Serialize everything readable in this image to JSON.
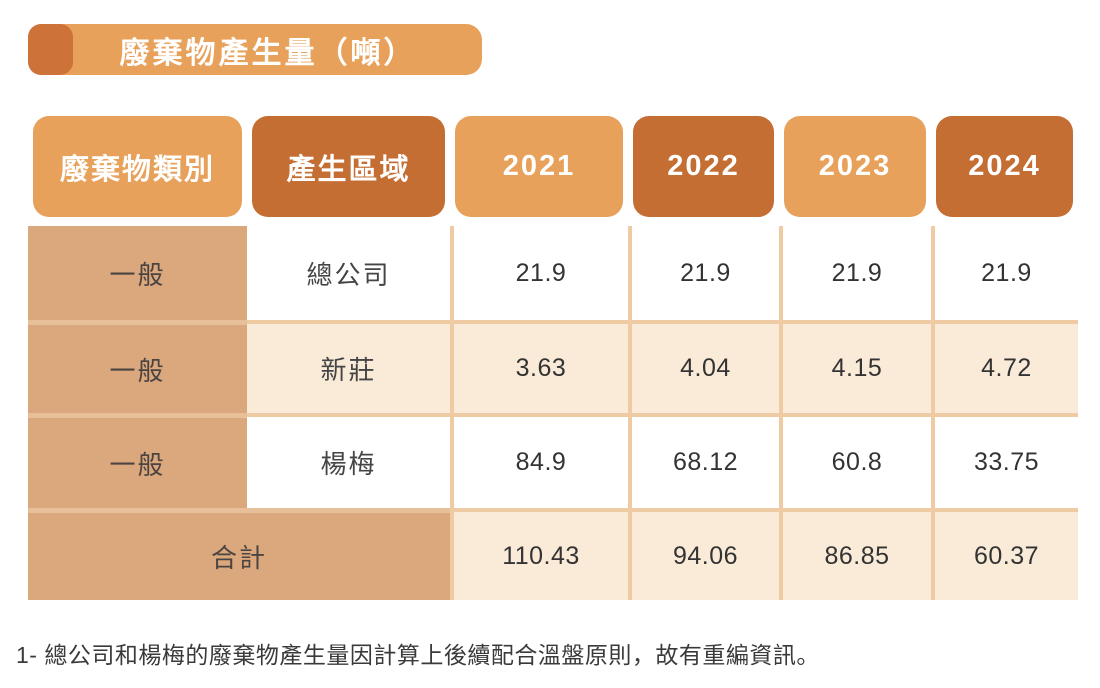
{
  "title": {
    "text": "廢棄物產生量（噸）"
  },
  "table": {
    "headers": [
      {
        "label": "廢棄物類別",
        "tone": "light"
      },
      {
        "label": "產生區域",
        "tone": "dark"
      },
      {
        "label": "2021",
        "tone": "light"
      },
      {
        "label": "2022",
        "tone": "dark"
      },
      {
        "label": "2023",
        "tone": "light"
      },
      {
        "label": "2024",
        "tone": "dark"
      }
    ],
    "rows": [
      {
        "category": "一般",
        "area": "總公司",
        "values": [
          "21.9",
          "21.9",
          "21.9",
          "21.9"
        ]
      },
      {
        "category": "一般",
        "area": "新莊",
        "values": [
          "3.63",
          "4.04",
          "4.15",
          "4.72"
        ]
      },
      {
        "category": "一般",
        "area": "楊梅",
        "values": [
          "84.9",
          "68.12",
          "60.8",
          "33.75"
        ]
      }
    ],
    "total": {
      "label": "合計",
      "values": [
        "110.43",
        "94.06",
        "86.85",
        "60.37"
      ]
    }
  },
  "footnote": "1- 總公司和楊梅的廢棄物產生量因計算上後續配合溫盤原則，故有重編資訊。",
  "chart_data": {
    "type": "table",
    "title": "廢棄物產生量（噸）",
    "columns": [
      "廢棄物類別",
      "產生區域",
      "2021",
      "2022",
      "2023",
      "2024"
    ],
    "rows": [
      [
        "一般",
        "總公司",
        21.9,
        21.9,
        21.9,
        21.9
      ],
      [
        "一般",
        "新莊",
        3.63,
        4.04,
        4.15,
        4.72
      ],
      [
        "一般",
        "楊梅",
        84.9,
        68.12,
        60.8,
        33.75
      ],
      [
        "合計",
        "",
        110.43,
        94.06,
        86.85,
        60.37
      ]
    ]
  },
  "colors": {
    "accent_light": "#E7A15A",
    "accent_dark": "#C46E33",
    "banner_tab": "#CD7239",
    "category_tan": "#DBA87D",
    "row_cream": "#FAEBD8",
    "row_white": "#FFFFFF",
    "grid_border": "#EFCBA3",
    "category_border": "#E7BF98",
    "header_text": "#FFFFFF",
    "body_text": "#454545"
  }
}
